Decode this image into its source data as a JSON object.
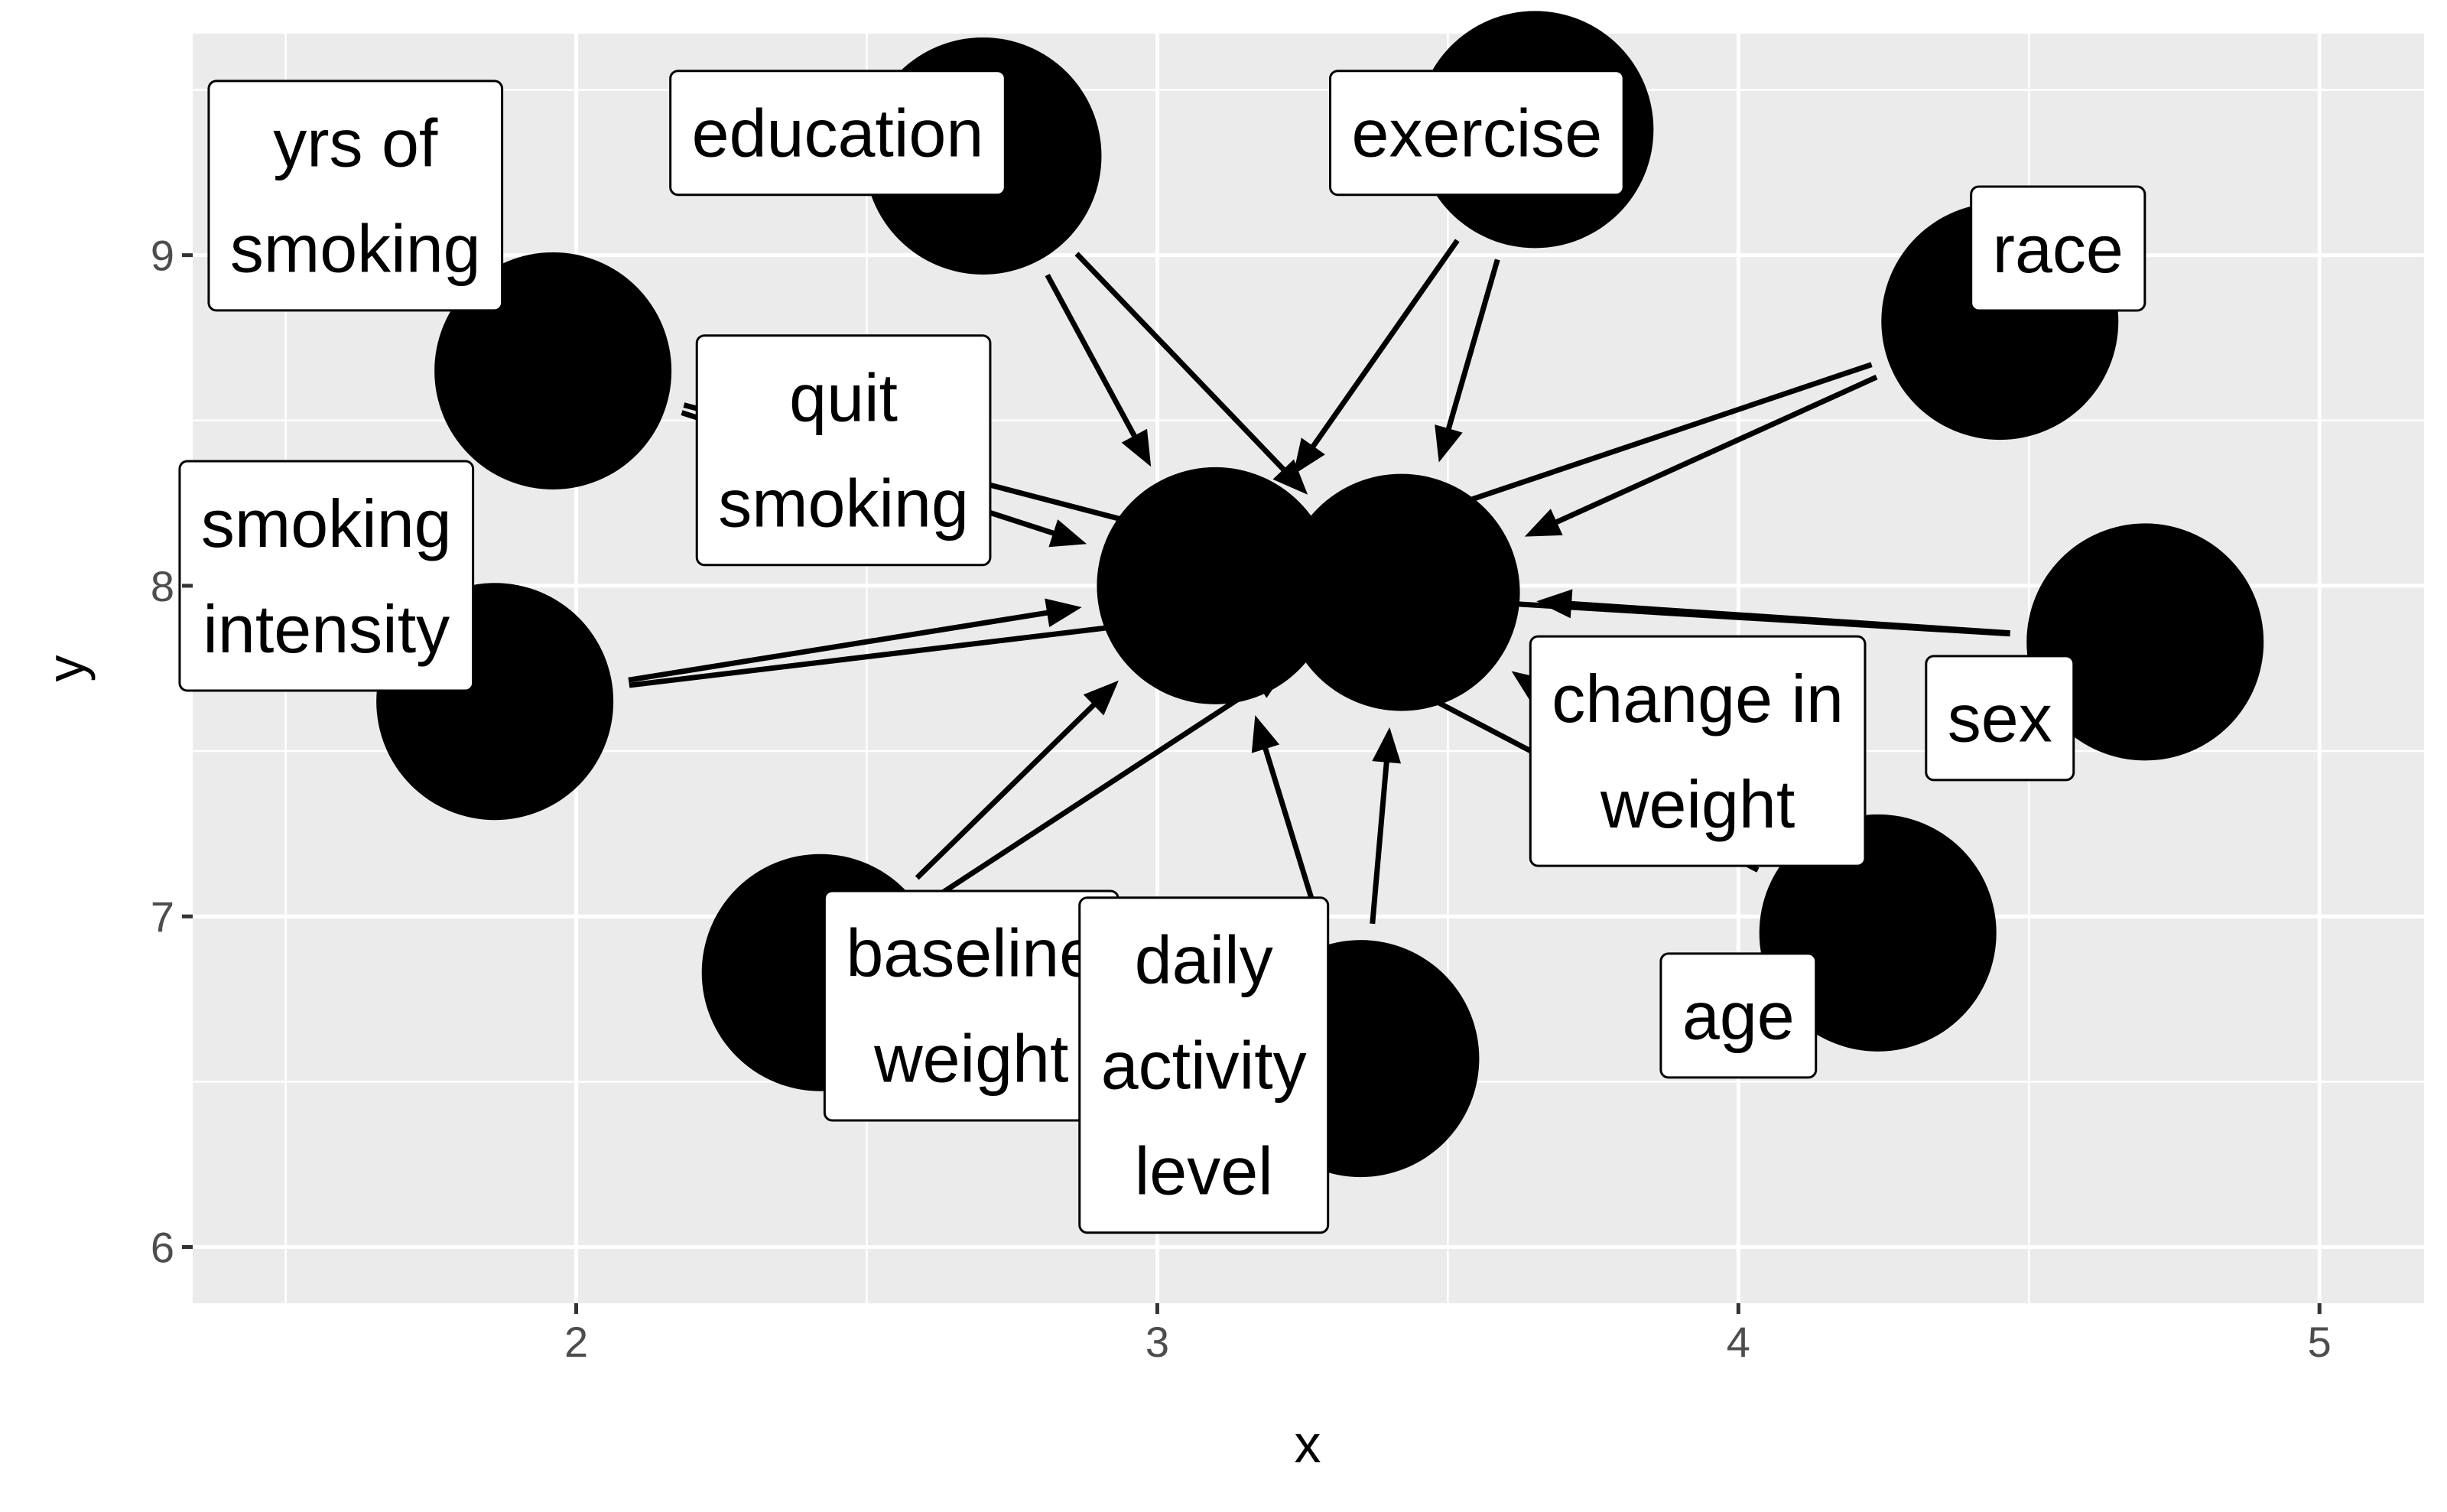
{
  "chart_data": {
    "type": "scatter",
    "title": "",
    "xlabel": "x",
    "ylabel": "y",
    "xlim": [
      1.34,
      5.18
    ],
    "ylim": [
      5.83,
      9.67
    ],
    "x_ticks": [
      2,
      3,
      4,
      5
    ],
    "y_ticks": [
      6,
      7,
      8,
      9
    ],
    "x_tick_labels": [
      "2",
      "3",
      "4",
      "5"
    ],
    "y_tick_labels": [
      "6",
      "7",
      "8",
      "9"
    ],
    "grid": true,
    "colors": {
      "panel_background": "#ebebeb",
      "grid": "#ffffff",
      "node": "#000000",
      "edge": "#000000",
      "label_fill": "#ffffff"
    },
    "nodes": [
      {
        "id": "yrs_smoking",
        "label": "yrs of smoking",
        "lines": [
          "yrs of",
          "smoking"
        ],
        "x": 1.96,
        "y": 8.65,
        "label_x": 1.62,
        "label_y": 9.18
      },
      {
        "id": "education",
        "label": "education",
        "lines": [
          "education"
        ],
        "x": 2.7,
        "y": 9.3,
        "label_x": 2.45,
        "label_y": 9.37
      },
      {
        "id": "exercise",
        "label": "exercise",
        "lines": [
          "exercise"
        ],
        "x": 3.65,
        "y": 9.38,
        "label_x": 3.55,
        "label_y": 9.37
      },
      {
        "id": "race",
        "label": "race",
        "lines": [
          "race"
        ],
        "x": 4.45,
        "y": 8.8,
        "label_x": 4.55,
        "label_y": 9.02
      },
      {
        "id": "quit_smoking",
        "label": "quit smoking",
        "lines": [
          "quit",
          "smoking"
        ],
        "x": 3.1,
        "y": 8.0,
        "label_x": 2.46,
        "label_y": 8.41
      },
      {
        "id": "weight_change",
        "label": "change in weight",
        "lines": [
          "change in",
          "weight"
        ],
        "x": 3.42,
        "y": 7.98,
        "label_x": 3.93,
        "label_y": 7.5
      },
      {
        "id": "smoking_intensity",
        "label": "smoking intensity",
        "lines": [
          "smoking",
          "intensity"
        ],
        "x": 1.86,
        "y": 7.65,
        "label_x": 1.57,
        "label_y": 8.03
      },
      {
        "id": "sex",
        "label": "sex",
        "lines": [
          "sex"
        ],
        "x": 4.7,
        "y": 7.83,
        "label_x": 4.45,
        "label_y": 7.6
      },
      {
        "id": "baseline_weight",
        "label": "baseline weight",
        "lines": [
          "baseline",
          "weight"
        ],
        "x": 2.42,
        "y": 6.83,
        "label_x": 2.68,
        "label_y": 6.73
      },
      {
        "id": "daily_activity",
        "label": "daily activity level",
        "lines": [
          "daily",
          "activity",
          "level"
        ],
        "x": 3.35,
        "y": 6.57,
        "label_x": 3.08,
        "label_y": 6.55
      },
      {
        "id": "age",
        "label": "age",
        "lines": [
          "age"
        ],
        "x": 4.24,
        "y": 6.95,
        "label_x": 4.0,
        "label_y": 6.7
      }
    ],
    "edges": [
      {
        "from": "yrs_smoking",
        "to": "quit_smoking"
      },
      {
        "from": "yrs_smoking",
        "to": "weight_change"
      },
      {
        "from": "education",
        "to": "quit_smoking"
      },
      {
        "from": "education",
        "to": "weight_change"
      },
      {
        "from": "exercise",
        "to": "quit_smoking"
      },
      {
        "from": "exercise",
        "to": "weight_change"
      },
      {
        "from": "race",
        "to": "quit_smoking"
      },
      {
        "from": "race",
        "to": "weight_change"
      },
      {
        "from": "quit_smoking",
        "to": "weight_change"
      },
      {
        "from": "smoking_intensity",
        "to": "quit_smoking"
      },
      {
        "from": "smoking_intensity",
        "to": "weight_change"
      },
      {
        "from": "sex",
        "to": "quit_smoking"
      },
      {
        "from": "sex",
        "to": "weight_change"
      },
      {
        "from": "baseline_weight",
        "to": "quit_smoking"
      },
      {
        "from": "baseline_weight",
        "to": "weight_change"
      },
      {
        "from": "daily_activity",
        "to": "quit_smoking"
      },
      {
        "from": "daily_activity",
        "to": "weight_change"
      },
      {
        "from": "age",
        "to": "quit_smoking"
      },
      {
        "from": "age",
        "to": "weight_change"
      }
    ]
  }
}
